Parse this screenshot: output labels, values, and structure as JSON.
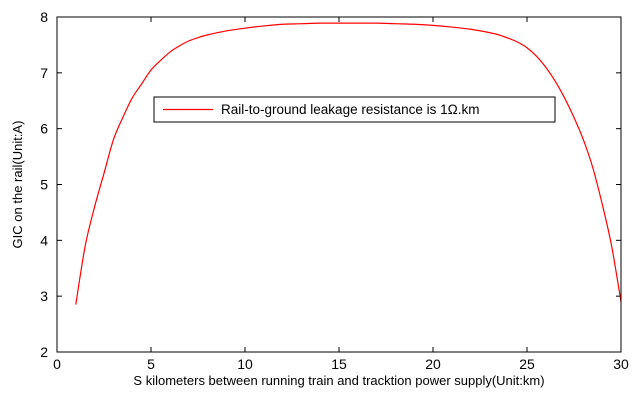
{
  "chart_data": {
    "type": "line",
    "title": "",
    "xlabel": "S kilometers between running train and tracktion power supply(Unit:km)",
    "ylabel": "GIC on the rail(Unit:A)",
    "xlim": [
      0,
      30
    ],
    "ylim": [
      2,
      8
    ],
    "xticks": [
      0,
      5,
      10,
      15,
      20,
      25,
      30
    ],
    "yticks": [
      2,
      3,
      4,
      5,
      6,
      7,
      8
    ],
    "grid": false,
    "legend_position": "upper-center",
    "colors": {
      "series": "#ff0000",
      "axis": "#000000",
      "background": "#ffffff"
    },
    "series": [
      {
        "name": "Rail-to-ground leakage resistance is 1Ω.km",
        "x": [
          1,
          1.5,
          2,
          2.5,
          3,
          3.5,
          4,
          4.5,
          5,
          5.5,
          6,
          6.5,
          7,
          7.5,
          8,
          9,
          10,
          11,
          12,
          13,
          14,
          15,
          16,
          17,
          18,
          19,
          20,
          21,
          22,
          23,
          23.5,
          24,
          24.5,
          25,
          25.5,
          26,
          26.5,
          27,
          27.5,
          28,
          28.5,
          29,
          29.5,
          30
        ],
        "y": [
          2.85,
          3.9,
          4.6,
          5.2,
          5.8,
          6.2,
          6.55,
          6.8,
          7.05,
          7.22,
          7.37,
          7.48,
          7.57,
          7.63,
          7.68,
          7.75,
          7.8,
          7.84,
          7.87,
          7.88,
          7.89,
          7.89,
          7.89,
          7.89,
          7.88,
          7.87,
          7.85,
          7.82,
          7.78,
          7.72,
          7.68,
          7.62,
          7.55,
          7.45,
          7.3,
          7.1,
          6.85,
          6.55,
          6.2,
          5.8,
          5.3,
          4.65,
          3.9,
          2.9
        ]
      }
    ]
  }
}
